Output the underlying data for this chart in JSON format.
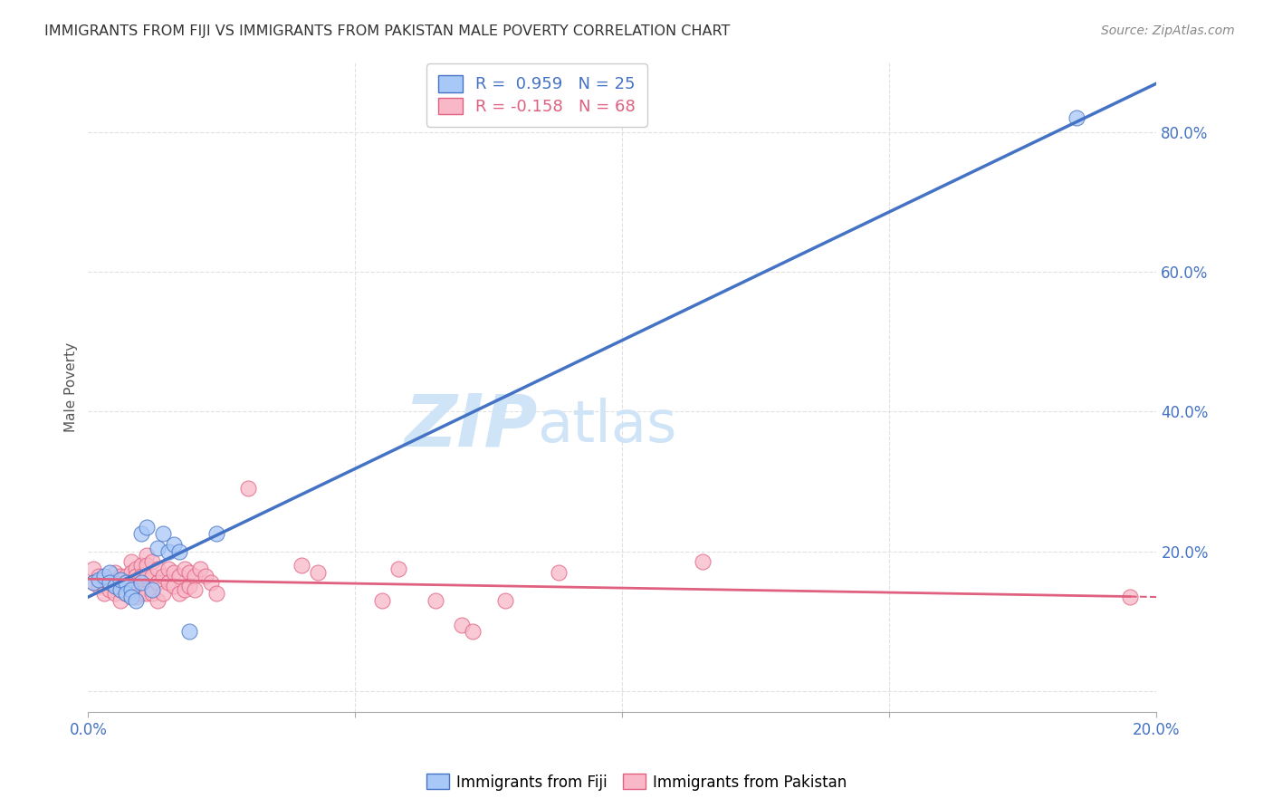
{
  "title": "IMMIGRANTS FROM FIJI VS IMMIGRANTS FROM PAKISTAN MALE POVERTY CORRELATION CHART",
  "source": "Source: ZipAtlas.com",
  "ylabel": "Male Poverty",
  "xlim": [
    0.0,
    0.2
  ],
  "ylim": [
    -0.03,
    0.9
  ],
  "yticks": [
    0.0,
    0.2,
    0.4,
    0.6,
    0.8
  ],
  "ytick_labels": [
    "",
    "20.0%",
    "40.0%",
    "60.0%",
    "80.0%"
  ],
  "xticks": [
    0.0,
    0.05,
    0.1,
    0.15,
    0.2
  ],
  "xtick_labels": [
    "0.0%",
    "",
    "",
    "",
    "20.0%"
  ],
  "fiji_R": 0.959,
  "fiji_N": 25,
  "pakistan_R": -0.158,
  "pakistan_N": 68,
  "fiji_color": "#a8c8f8",
  "fiji_line_color": "#4472c4",
  "pakistan_color": "#f8b8c8",
  "pakistan_line_color": "#e06080",
  "watermark_zip": "ZIP",
  "watermark_atlas": "atlas",
  "watermark_color": "#d0e4f8",
  "background_color": "#ffffff",
  "grid_color": "#e0e0e0",
  "fiji_points": [
    [
      0.001,
      0.155
    ],
    [
      0.002,
      0.16
    ],
    [
      0.003,
      0.165
    ],
    [
      0.004,
      0.17
    ],
    [
      0.004,
      0.155
    ],
    [
      0.005,
      0.15
    ],
    [
      0.006,
      0.145
    ],
    [
      0.006,
      0.16
    ],
    [
      0.007,
      0.155
    ],
    [
      0.007,
      0.14
    ],
    [
      0.008,
      0.145
    ],
    [
      0.008,
      0.135
    ],
    [
      0.009,
      0.13
    ],
    [
      0.01,
      0.155
    ],
    [
      0.01,
      0.225
    ],
    [
      0.011,
      0.235
    ],
    [
      0.012,
      0.145
    ],
    [
      0.013,
      0.205
    ],
    [
      0.014,
      0.225
    ],
    [
      0.015,
      0.2
    ],
    [
      0.016,
      0.21
    ],
    [
      0.017,
      0.2
    ],
    [
      0.019,
      0.085
    ],
    [
      0.024,
      0.225
    ],
    [
      0.185,
      0.82
    ]
  ],
  "pakistan_points": [
    [
      0.001,
      0.175
    ],
    [
      0.001,
      0.155
    ],
    [
      0.002,
      0.165
    ],
    [
      0.002,
      0.15
    ],
    [
      0.003,
      0.16
    ],
    [
      0.003,
      0.14
    ],
    [
      0.004,
      0.155
    ],
    [
      0.004,
      0.145
    ],
    [
      0.005,
      0.17
    ],
    [
      0.005,
      0.15
    ],
    [
      0.005,
      0.14
    ],
    [
      0.006,
      0.165
    ],
    [
      0.006,
      0.145
    ],
    [
      0.006,
      0.13
    ],
    [
      0.007,
      0.165
    ],
    [
      0.007,
      0.155
    ],
    [
      0.007,
      0.14
    ],
    [
      0.008,
      0.185
    ],
    [
      0.008,
      0.17
    ],
    [
      0.008,
      0.155
    ],
    [
      0.008,
      0.14
    ],
    [
      0.009,
      0.175
    ],
    [
      0.009,
      0.165
    ],
    [
      0.009,
      0.15
    ],
    [
      0.009,
      0.135
    ],
    [
      0.01,
      0.18
    ],
    [
      0.01,
      0.165
    ],
    [
      0.01,
      0.14
    ],
    [
      0.011,
      0.195
    ],
    [
      0.011,
      0.18
    ],
    [
      0.011,
      0.165
    ],
    [
      0.011,
      0.14
    ],
    [
      0.012,
      0.185
    ],
    [
      0.012,
      0.165
    ],
    [
      0.012,
      0.14
    ],
    [
      0.013,
      0.175
    ],
    [
      0.013,
      0.155
    ],
    [
      0.013,
      0.13
    ],
    [
      0.014,
      0.165
    ],
    [
      0.014,
      0.14
    ],
    [
      0.015,
      0.175
    ],
    [
      0.015,
      0.155
    ],
    [
      0.016,
      0.17
    ],
    [
      0.016,
      0.15
    ],
    [
      0.017,
      0.165
    ],
    [
      0.017,
      0.14
    ],
    [
      0.018,
      0.175
    ],
    [
      0.018,
      0.145
    ],
    [
      0.019,
      0.17
    ],
    [
      0.019,
      0.15
    ],
    [
      0.02,
      0.165
    ],
    [
      0.02,
      0.145
    ],
    [
      0.021,
      0.175
    ],
    [
      0.022,
      0.165
    ],
    [
      0.023,
      0.155
    ],
    [
      0.024,
      0.14
    ],
    [
      0.03,
      0.29
    ],
    [
      0.04,
      0.18
    ],
    [
      0.043,
      0.17
    ],
    [
      0.055,
      0.13
    ],
    [
      0.058,
      0.175
    ],
    [
      0.065,
      0.13
    ],
    [
      0.07,
      0.095
    ],
    [
      0.072,
      0.085
    ],
    [
      0.078,
      0.13
    ],
    [
      0.088,
      0.17
    ],
    [
      0.115,
      0.185
    ],
    [
      0.195,
      0.135
    ]
  ],
  "pakistan_line_end": 0.195,
  "pakistan_line_extend": 0.2
}
